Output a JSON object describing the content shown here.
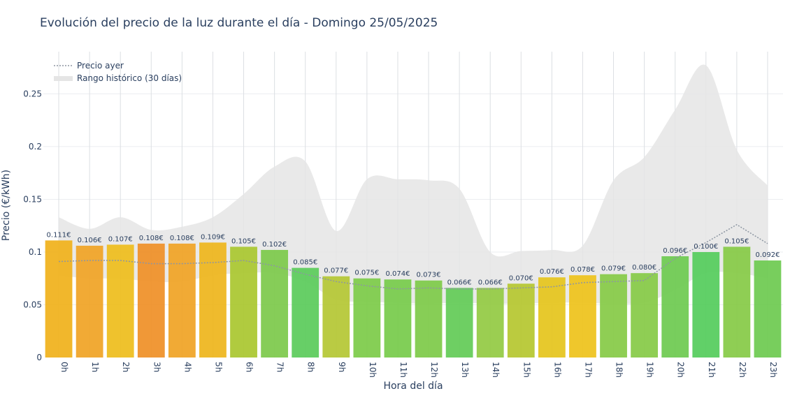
{
  "chart_data": {
    "type": "bar",
    "title": "Evolución del precio de la luz durante el día - Domingo 25/05/2025",
    "xlabel": "Hora del día",
    "ylabel": "Precio (€/kWh)",
    "ylim": [
      0,
      0.29
    ],
    "yticks": [
      0,
      0.05,
      0.1,
      0.15,
      0.2,
      0.25
    ],
    "ytick_labels": [
      "0",
      "0.05",
      "0.1",
      "0.15",
      "0.2",
      "0.25"
    ],
    "categories": [
      "0h",
      "1h",
      "2h",
      "3h",
      "4h",
      "5h",
      "6h",
      "7h",
      "8h",
      "9h",
      "10h",
      "11h",
      "12h",
      "13h",
      "14h",
      "15h",
      "16h",
      "17h",
      "18h",
      "19h",
      "20h",
      "21h",
      "22h",
      "23h"
    ],
    "values": [
      0.111,
      0.106,
      0.107,
      0.108,
      0.108,
      0.109,
      0.105,
      0.102,
      0.085,
      0.077,
      0.075,
      0.074,
      0.073,
      0.066,
      0.066,
      0.07,
      0.076,
      0.078,
      0.079,
      0.08,
      0.096,
      0.1,
      0.105,
      0.092
    ],
    "value_labels": [
      "0.111€",
      "0.106€",
      "0.107€",
      "0.108€",
      "0.108€",
      "0.109€",
      "0.105€",
      "0.102€",
      "0.085€",
      "0.077€",
      "0.075€",
      "0.074€",
      "0.073€",
      "0.066€",
      "0.066€",
      "0.070€",
      "0.076€",
      "0.078€",
      "0.079€",
      "0.080€",
      "0.096€",
      "0.100€",
      "0.105€",
      "0.092€"
    ],
    "bar_colors": [
      "#f0b11a",
      "#f0a324",
      "#eebd1b",
      "#ef8f26",
      "#f0a324",
      "#eeb51b",
      "#a9c72f",
      "#7cc94a",
      "#5acb5a",
      "#b4c733",
      "#7ccb48",
      "#76cb4a",
      "#7dca48",
      "#62cb56",
      "#92ca42",
      "#b5c72f",
      "#e5c41b",
      "#eec21a",
      "#86ca45",
      "#86ca45",
      "#6cca4f",
      "#54cc5b",
      "#86ca45",
      "#6cca4f"
    ],
    "series": [
      {
        "name": "Precio ayer",
        "style": "dotted-line",
        "color": "#8d96a2",
        "values": [
          0.091,
          0.092,
          0.092,
          0.089,
          0.089,
          0.09,
          0.092,
          0.087,
          0.079,
          0.072,
          0.068,
          0.065,
          0.066,
          0.065,
          0.065,
          0.066,
          0.067,
          0.071,
          0.072,
          0.073,
          0.094,
          0.109,
          0.126,
          0.108
        ]
      },
      {
        "name": "Rango histórico (30 días)",
        "style": "band",
        "color": "#e5e5e5",
        "upper": [
          0.133,
          0.122,
          0.133,
          0.121,
          0.124,
          0.133,
          0.155,
          0.181,
          0.186,
          0.12,
          0.169,
          0.169,
          0.168,
          0.16,
          0.1,
          0.101,
          0.102,
          0.106,
          0.168,
          0.19,
          0.235,
          0.277,
          0.197,
          0.163
        ],
        "lower": [
          0.078,
          0.075,
          0.075,
          0.072,
          0.072,
          0.078,
          0.08,
          0.08,
          0.072,
          0.055,
          0.053,
          0.052,
          0.051,
          0.052,
          0.051,
          0.051,
          0.052,
          0.052,
          0.051,
          0.052,
          0.064,
          0.08,
          0.08,
          0.075
        ]
      }
    ],
    "grid": true,
    "legend": "top-left"
  }
}
